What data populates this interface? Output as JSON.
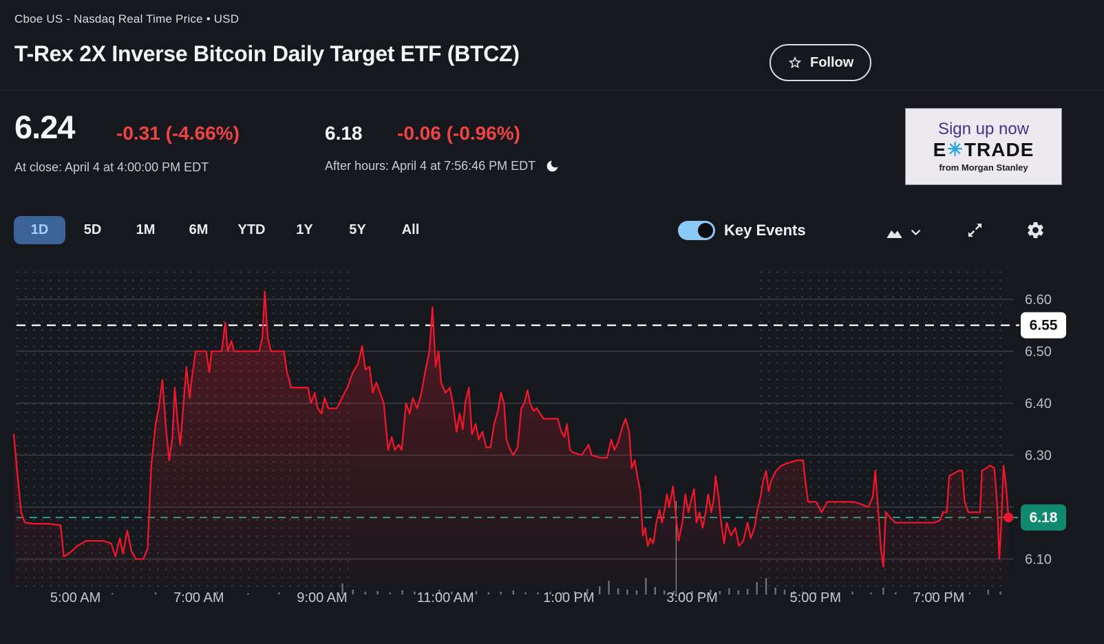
{
  "header": {
    "exchange_line": "Cboe US - Nasdaq Real Time Price • USD",
    "title": "T-Rex 2X Inverse Bitcoin Daily Target ETF (BTCZ)",
    "follow_label": "Follow"
  },
  "quote": {
    "close_price": "6.24",
    "close_change": "-0.31 (-4.66%)",
    "close_time": "At close: April 4 at 4:00:00 PM EDT",
    "after_price": "6.18",
    "after_change": "-0.06 (-0.96%)",
    "after_time": "After hours: April 4 at 7:56:46 PM EDT",
    "down_color": "#f04343"
  },
  "ad": {
    "line1": "Sign up now",
    "brand_e": "E",
    "brand_star": "✳",
    "brand_rest": "TRADE",
    "tagline": "from Morgan Stanley"
  },
  "toolbar": {
    "ranges": [
      "1D",
      "5D",
      "1M",
      "6M",
      "YTD",
      "1Y",
      "5Y",
      "All"
    ],
    "selected_range": "1D",
    "key_events_label": "Key Events",
    "key_events_on": true
  },
  "chart_data": {
    "type": "line",
    "symbol": "BTCZ",
    "x_unit": "hour_of_day_24h",
    "x_range": [
      4.0,
      20.2
    ],
    "y_range": [
      6.05,
      6.66
    ],
    "grid": true,
    "legend_position": "none",
    "x_ticks": [
      {
        "h": 5,
        "label": "5:00 AM"
      },
      {
        "h": 7,
        "label": "7:00 AM"
      },
      {
        "h": 9,
        "label": "9:00 AM"
      },
      {
        "h": 11,
        "label": "11:00 AM"
      },
      {
        "h": 13,
        "label": "1:00 PM"
      },
      {
        "h": 15,
        "label": "3:00 PM"
      },
      {
        "h": 17,
        "label": "5:00 PM"
      },
      {
        "h": 19,
        "label": "7:00 PM"
      }
    ],
    "y_ticks": [
      {
        "value": 6.6,
        "label": "6.60"
      },
      {
        "value": 6.5,
        "label": "6.50"
      },
      {
        "value": 6.4,
        "label": "6.40"
      },
      {
        "value": 6.3,
        "label": "6.30"
      },
      {
        "value": 6.2,
        "label": ""
      },
      {
        "value": 6.1,
        "label": "6.10"
      }
    ],
    "previous_close": 6.55,
    "previous_close_badge": "6.55",
    "last_price": 6.18,
    "last_price_badge": "6.18",
    "market_open_hour": 9.5,
    "market_close_hour": 16.0,
    "cursor_hour": 14.74,
    "colors": {
      "line": "#f0162b",
      "area_top_opacity": 0.3,
      "last_badge": "#0f8a70",
      "prev_close_line": "#e8eaec",
      "last_price_line": "#2f9f7f",
      "grid": "#3a4047",
      "dots": "#3d434b",
      "axis_text": "#b9bdc4",
      "tick_text": "#c6cad0",
      "volume": "#7c828a",
      "cursor": "#c9cdd2",
      "prev_badge_bg": "#ffffff",
      "prev_badge_text": "#111111"
    },
    "series": [
      [
        4.0,
        6.34
      ],
      [
        4.07,
        6.25
      ],
      [
        4.12,
        6.19
      ],
      [
        4.18,
        6.17
      ],
      [
        4.33,
        6.168
      ],
      [
        4.56,
        6.168
      ],
      [
        4.76,
        6.165
      ],
      [
        4.81,
        6.105
      ],
      [
        4.89,
        6.11
      ],
      [
        5.03,
        6.125
      ],
      [
        5.17,
        6.135
      ],
      [
        5.45,
        6.135
      ],
      [
        5.58,
        6.13
      ],
      [
        5.65,
        6.105
      ],
      [
        5.72,
        6.14
      ],
      [
        5.77,
        6.11
      ],
      [
        5.84,
        6.155
      ],
      [
        5.91,
        6.115
      ],
      [
        5.98,
        6.1
      ],
      [
        6.1,
        6.1
      ],
      [
        6.17,
        6.12
      ],
      [
        6.23,
        6.28
      ],
      [
        6.3,
        6.36
      ],
      [
        6.35,
        6.39
      ],
      [
        6.41,
        6.445
      ],
      [
        6.47,
        6.35
      ],
      [
        6.52,
        6.29
      ],
      [
        6.57,
        6.33
      ],
      [
        6.61,
        6.43
      ],
      [
        6.66,
        6.36
      ],
      [
        6.7,
        6.32
      ],
      [
        6.76,
        6.41
      ],
      [
        6.8,
        6.47
      ],
      [
        6.85,
        6.41
      ],
      [
        6.89,
        6.45
      ],
      [
        6.95,
        6.5
      ],
      [
        7.12,
        6.5
      ],
      [
        7.17,
        6.46
      ],
      [
        7.21,
        6.5
      ],
      [
        7.37,
        6.5
      ],
      [
        7.43,
        6.555
      ],
      [
        7.47,
        6.5
      ],
      [
        7.53,
        6.52
      ],
      [
        7.57,
        6.5
      ],
      [
        7.79,
        6.5
      ],
      [
        7.98,
        6.5
      ],
      [
        8.03,
        6.525
      ],
      [
        8.07,
        6.615
      ],
      [
        8.12,
        6.525
      ],
      [
        8.17,
        6.5
      ],
      [
        8.38,
        6.5
      ],
      [
        8.43,
        6.46
      ],
      [
        8.5,
        6.43
      ],
      [
        8.77,
        6.43
      ],
      [
        8.82,
        6.4
      ],
      [
        8.88,
        6.42
      ],
      [
        8.93,
        6.39
      ],
      [
        8.99,
        6.38
      ],
      [
        9.04,
        6.41
      ],
      [
        9.1,
        6.39
      ],
      [
        9.24,
        6.39
      ],
      [
        9.32,
        6.41
      ],
      [
        9.41,
        6.43
      ],
      [
        9.5,
        6.46
      ],
      [
        9.58,
        6.475
      ],
      [
        9.65,
        6.51
      ],
      [
        9.7,
        6.465
      ],
      [
        9.77,
        6.47
      ],
      [
        9.82,
        6.42
      ],
      [
        9.88,
        6.44
      ],
      [
        9.94,
        6.42
      ],
      [
        10.0,
        6.4
      ],
      [
        10.07,
        6.31
      ],
      [
        10.13,
        6.335
      ],
      [
        10.18,
        6.31
      ],
      [
        10.24,
        6.32
      ],
      [
        10.29,
        6.31
      ],
      [
        10.36,
        6.4
      ],
      [
        10.42,
        6.38
      ],
      [
        10.47,
        6.41
      ],
      [
        10.54,
        6.39
      ],
      [
        10.61,
        6.42
      ],
      [
        10.67,
        6.46
      ],
      [
        10.74,
        6.5
      ],
      [
        10.79,
        6.585
      ],
      [
        10.84,
        6.47
      ],
      [
        10.89,
        6.5
      ],
      [
        10.93,
        6.44
      ],
      [
        11.0,
        6.42
      ],
      [
        11.07,
        6.43
      ],
      [
        11.12,
        6.4
      ],
      [
        11.18,
        6.345
      ],
      [
        11.23,
        6.38
      ],
      [
        11.28,
        6.35
      ],
      [
        11.32,
        6.4
      ],
      [
        11.38,
        6.43
      ],
      [
        11.43,
        6.34
      ],
      [
        11.49,
        6.36
      ],
      [
        11.54,
        6.33
      ],
      [
        11.6,
        6.345
      ],
      [
        11.66,
        6.315
      ],
      [
        11.73,
        6.315
      ],
      [
        11.79,
        6.36
      ],
      [
        11.85,
        6.385
      ],
      [
        11.9,
        6.42
      ],
      [
        11.95,
        6.4
      ],
      [
        11.99,
        6.33
      ],
      [
        12.05,
        6.31
      ],
      [
        12.1,
        6.3
      ],
      [
        12.17,
        6.315
      ],
      [
        12.23,
        6.39
      ],
      [
        12.28,
        6.4
      ],
      [
        12.33,
        6.425
      ],
      [
        12.37,
        6.4
      ],
      [
        12.43,
        6.385
      ],
      [
        12.48,
        6.39
      ],
      [
        12.59,
        6.37
      ],
      [
        12.71,
        6.37
      ],
      [
        12.82,
        6.37
      ],
      [
        12.88,
        6.345
      ],
      [
        12.93,
        6.335
      ],
      [
        12.97,
        6.36
      ],
      [
        13.02,
        6.31
      ],
      [
        13.07,
        6.305
      ],
      [
        13.21,
        6.3
      ],
      [
        13.32,
        6.32
      ],
      [
        13.37,
        6.3
      ],
      [
        13.51,
        6.295
      ],
      [
        13.62,
        6.295
      ],
      [
        13.69,
        6.33
      ],
      [
        13.74,
        6.31
      ],
      [
        13.8,
        6.325
      ],
      [
        13.87,
        6.355
      ],
      [
        13.92,
        6.37
      ],
      [
        13.98,
        6.345
      ],
      [
        14.02,
        6.275
      ],
      [
        14.07,
        6.29
      ],
      [
        14.11,
        6.26
      ],
      [
        14.16,
        6.23
      ],
      [
        14.2,
        6.145
      ],
      [
        14.24,
        6.16
      ],
      [
        14.28,
        6.125
      ],
      [
        14.32,
        6.14
      ],
      [
        14.37,
        6.13
      ],
      [
        14.42,
        6.17
      ],
      [
        14.47,
        6.195
      ],
      [
        14.51,
        6.17
      ],
      [
        14.56,
        6.2
      ],
      [
        14.59,
        6.225
      ],
      [
        14.63,
        6.2
      ],
      [
        14.69,
        6.24
      ],
      [
        14.74,
        6.18
      ],
      [
        14.78,
        6.135
      ],
      [
        14.84,
        6.17
      ],
      [
        14.89,
        6.225
      ],
      [
        14.94,
        6.19
      ],
      [
        14.98,
        6.21
      ],
      [
        15.03,
        6.235
      ],
      [
        15.07,
        6.17
      ],
      [
        15.12,
        6.19
      ],
      [
        15.17,
        6.16
      ],
      [
        15.22,
        6.19
      ],
      [
        15.26,
        6.225
      ],
      [
        15.31,
        6.19
      ],
      [
        15.35,
        6.215
      ],
      [
        15.38,
        6.26
      ],
      [
        15.43,
        6.22
      ],
      [
        15.47,
        6.17
      ],
      [
        15.52,
        6.13
      ],
      [
        15.56,
        6.17
      ],
      [
        15.63,
        6.145
      ],
      [
        15.7,
        6.16
      ],
      [
        15.76,
        6.125
      ],
      [
        15.83,
        6.135
      ],
      [
        15.9,
        6.17
      ],
      [
        15.95,
        6.14
      ],
      [
        16.01,
        6.16
      ],
      [
        16.06,
        6.195
      ],
      [
        16.11,
        6.22
      ],
      [
        16.15,
        6.25
      ],
      [
        16.2,
        6.27
      ],
      [
        16.24,
        6.23
      ],
      [
        16.28,
        6.25
      ],
      [
        16.36,
        6.27
      ],
      [
        16.45,
        6.28
      ],
      [
        16.56,
        6.285
      ],
      [
        16.7,
        6.29
      ],
      [
        16.8,
        6.29
      ],
      [
        16.83,
        6.255
      ],
      [
        16.88,
        6.21
      ],
      [
        17.01,
        6.21
      ],
      [
        17.1,
        6.19
      ],
      [
        17.19,
        6.21
      ],
      [
        17.39,
        6.21
      ],
      [
        17.62,
        6.21
      ],
      [
        17.75,
        6.205
      ],
      [
        17.86,
        6.2
      ],
      [
        17.93,
        6.22
      ],
      [
        17.97,
        6.27
      ],
      [
        18.02,
        6.19
      ],
      [
        18.06,
        6.12
      ],
      [
        18.1,
        6.085
      ],
      [
        18.14,
        6.19
      ],
      [
        18.21,
        6.18
      ],
      [
        18.29,
        6.17
      ],
      [
        18.51,
        6.17
      ],
      [
        18.73,
        6.17
      ],
      [
        18.93,
        6.17
      ],
      [
        19.02,
        6.175
      ],
      [
        19.07,
        6.19
      ],
      [
        19.13,
        6.19
      ],
      [
        19.17,
        6.26
      ],
      [
        19.25,
        6.265
      ],
      [
        19.32,
        6.27
      ],
      [
        19.38,
        6.27
      ],
      [
        19.42,
        6.21
      ],
      [
        19.48,
        6.19
      ],
      [
        19.67,
        6.19
      ],
      [
        19.7,
        6.27
      ],
      [
        19.77,
        6.275
      ],
      [
        19.83,
        6.28
      ],
      [
        19.9,
        6.275
      ],
      [
        19.95,
        6.2
      ],
      [
        19.98,
        6.1
      ],
      [
        20.01,
        6.16
      ],
      [
        20.05,
        6.28
      ],
      [
        20.09,
        6.24
      ],
      [
        20.13,
        6.18
      ]
    ],
    "volume_bars": [
      [
        5.6,
        2
      ],
      [
        6.3,
        3
      ],
      [
        6.9,
        2
      ],
      [
        7.3,
        4
      ],
      [
        7.8,
        2
      ],
      [
        8.3,
        3
      ],
      [
        8.8,
        2
      ],
      [
        9.33,
        16
      ],
      [
        9.5,
        7
      ],
      [
        9.7,
        4
      ],
      [
        9.9,
        5
      ],
      [
        10.1,
        3
      ],
      [
        10.3,
        6
      ],
      [
        10.5,
        4
      ],
      [
        10.7,
        3
      ],
      [
        10.9,
        7
      ],
      [
        11.1,
        4
      ],
      [
        11.3,
        3
      ],
      [
        11.5,
        5
      ],
      [
        11.7,
        3
      ],
      [
        11.9,
        4
      ],
      [
        12.1,
        6
      ],
      [
        12.3,
        3
      ],
      [
        12.5,
        3
      ],
      [
        12.7,
        4
      ],
      [
        12.9,
        3
      ],
      [
        13.1,
        5
      ],
      [
        13.3,
        8
      ],
      [
        13.5,
        12
      ],
      [
        13.65,
        20
      ],
      [
        13.8,
        9
      ],
      [
        13.95,
        7
      ],
      [
        14.1,
        6
      ],
      [
        14.25,
        24
      ],
      [
        14.4,
        11
      ],
      [
        14.55,
        6
      ],
      [
        14.7,
        5
      ],
      [
        14.85,
        4
      ],
      [
        15.0,
        5
      ],
      [
        15.15,
        4
      ],
      [
        15.3,
        7
      ],
      [
        15.45,
        5
      ],
      [
        15.6,
        9
      ],
      [
        15.75,
        6
      ],
      [
        15.9,
        8
      ],
      [
        16.05,
        18
      ],
      [
        16.2,
        24
      ],
      [
        16.35,
        10
      ],
      [
        16.5,
        7
      ],
      [
        16.65,
        5
      ],
      [
        16.8,
        4
      ],
      [
        17.0,
        3
      ],
      [
        17.3,
        3
      ],
      [
        17.6,
        4
      ],
      [
        17.9,
        3
      ],
      [
        18.1,
        10
      ],
      [
        18.3,
        3
      ],
      [
        18.6,
        2
      ],
      [
        18.9,
        3
      ],
      [
        19.2,
        5
      ],
      [
        19.5,
        3
      ],
      [
        19.8,
        7
      ],
      [
        20.0,
        4
      ]
    ]
  }
}
